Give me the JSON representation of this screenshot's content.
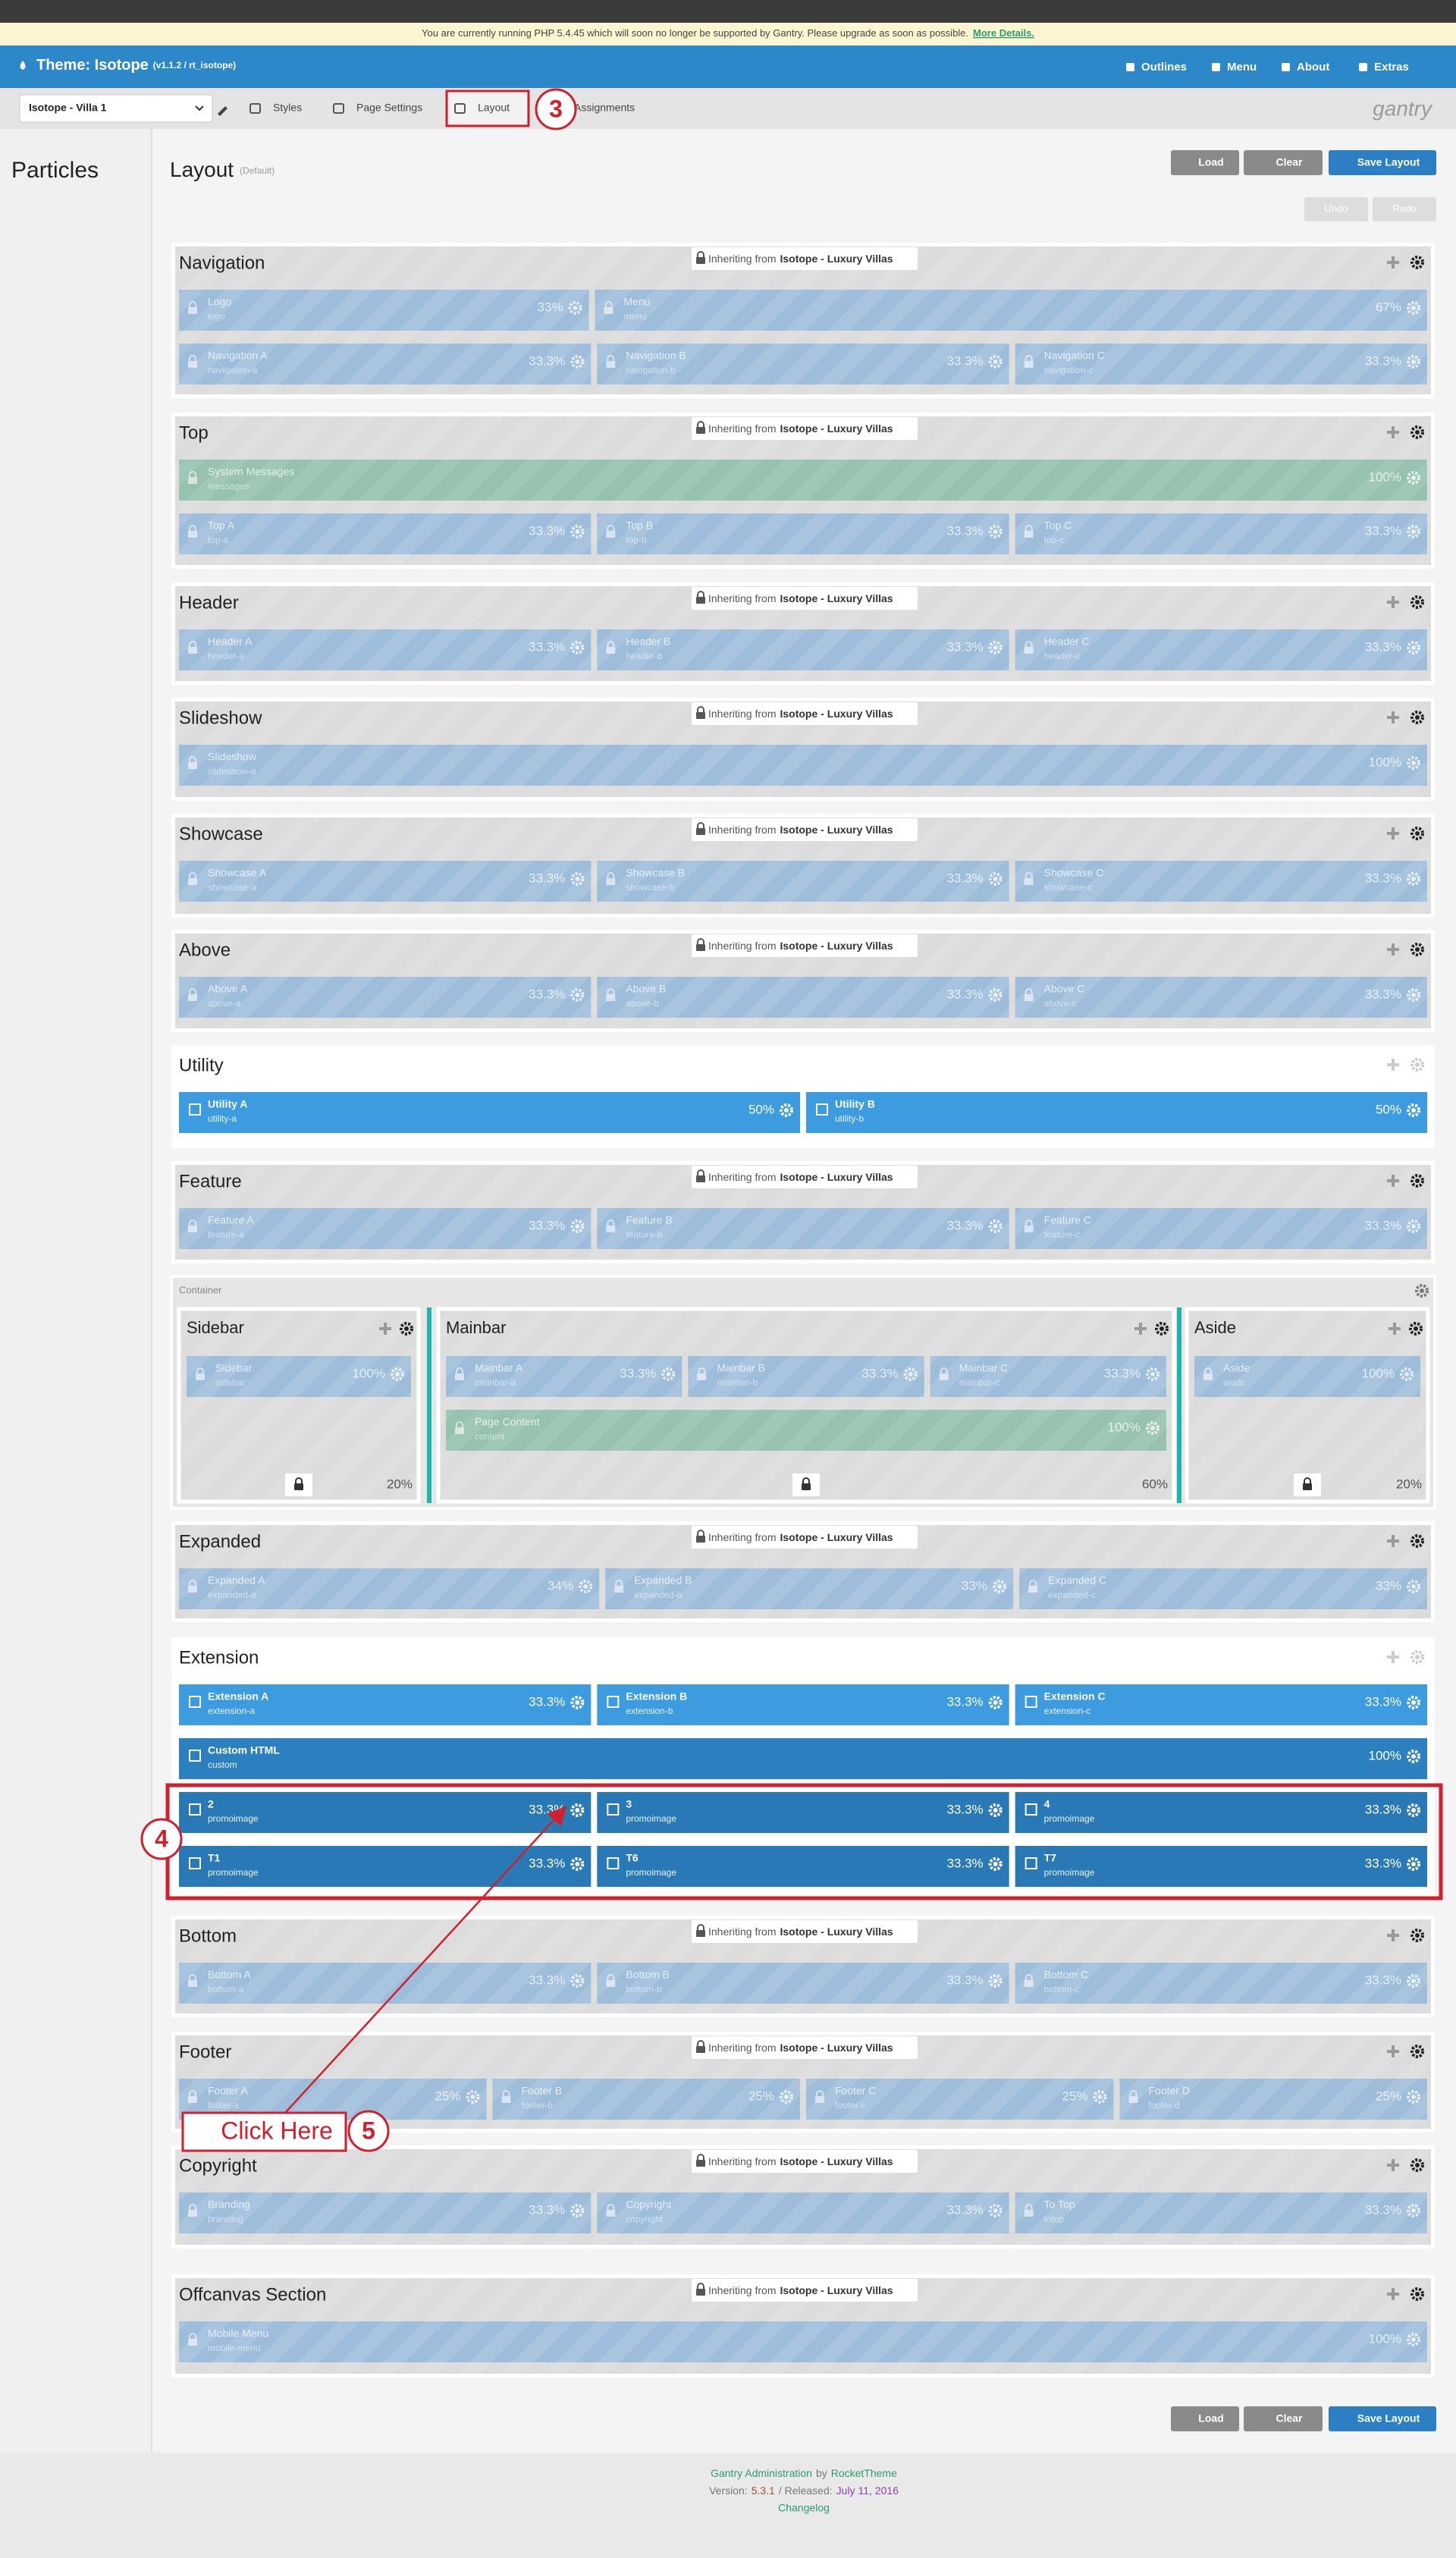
{
  "notice": {
    "text": "You are currently running PHP 5.4.45 which will soon no longer be supported by Gantry. Please upgrade as soon as possible.",
    "link": "More Details."
  },
  "topbar": {
    "title": "Theme: Isotope",
    "version": "(v1.1.2 / rt_isotope)",
    "nav": [
      "Outlines",
      "Menu",
      "About",
      "Extras"
    ]
  },
  "toolbar": {
    "outline": "Isotope - Villa 1",
    "tabs": [
      "Styles",
      "Page Settings",
      "Layout",
      "Assignments"
    ],
    "logo": "gantry"
  },
  "sidebar": {
    "title": "Particles"
  },
  "layout": {
    "title": "Layout",
    "subtitle": "(Default)",
    "buttons": [
      "Load",
      "Clear",
      "Save Layout"
    ],
    "undo": "Undo",
    "redo": "Redo",
    "inherit_text": "Inheriting from",
    "inherit_source": "Isotope - Luxury Villas"
  },
  "sections": [
    {
      "name": "Navigation",
      "inherited": true,
      "rows": [
        [
          {
            "title": "Logo",
            "id": "logo",
            "size": "33%"
          },
          {
            "title": "Menu",
            "id": "menu",
            "size": "67%"
          }
        ],
        [
          {
            "title": "Navigation A",
            "id": "navigation-a",
            "size": "33.3%"
          },
          {
            "title": "Navigation B",
            "id": "navigation-b",
            "size": "33.3%"
          },
          {
            "title": "Navigation C",
            "id": "navigation-c",
            "size": "33.3%"
          }
        ]
      ]
    },
    {
      "name": "Top",
      "inherited": true,
      "rows": [
        [
          {
            "title": "System Messages",
            "id": "messages",
            "size": "100%",
            "color": "#84bba4"
          }
        ],
        [
          {
            "title": "Top A",
            "id": "top-a",
            "size": "33.3%"
          },
          {
            "title": "Top B",
            "id": "top-b",
            "size": "33.3%"
          },
          {
            "title": "Top C",
            "id": "top-c",
            "size": "33.3%"
          }
        ]
      ]
    },
    {
      "name": "Header",
      "inherited": true,
      "rows": [
        [
          {
            "title": "Header A",
            "id": "header-a",
            "size": "33.3%"
          },
          {
            "title": "Header B",
            "id": "header-b",
            "size": "33.3%"
          },
          {
            "title": "Header C",
            "id": "header-c",
            "size": "33.3%"
          }
        ]
      ]
    },
    {
      "name": "Slideshow",
      "inherited": true,
      "rows": [
        [
          {
            "title": "Slideshow",
            "id": "slideshow-a",
            "size": "100%"
          }
        ]
      ]
    },
    {
      "name": "Showcase",
      "inherited": true,
      "rows": [
        [
          {
            "title": "Showcase A",
            "id": "showcase-a",
            "size": "33.3%"
          },
          {
            "title": "Showcase B",
            "id": "showcase-b",
            "size": "33.3%"
          },
          {
            "title": "Showcase C",
            "id": "showcase-c",
            "size": "33.3%"
          }
        ]
      ]
    },
    {
      "name": "Above",
      "inherited": true,
      "rows": [
        [
          {
            "title": "Above A",
            "id": "above-a",
            "size": "33.3%"
          },
          {
            "title": "Above B",
            "id": "above-b",
            "size": "33.3%"
          },
          {
            "title": "Above C",
            "id": "above-c",
            "size": "33.3%"
          }
        ]
      ]
    },
    {
      "name": "Utility",
      "inherited": false,
      "rows": [
        [
          {
            "title": "Utility A",
            "id": "utility-a",
            "size": "50%"
          },
          {
            "title": "Utility B",
            "id": "utility-b",
            "size": "50%"
          }
        ]
      ]
    },
    {
      "name": "Feature",
      "inherited": true,
      "rows": [
        [
          {
            "title": "Feature A",
            "id": "feature-a",
            "size": "33.3%"
          },
          {
            "title": "Feature B",
            "id": "feature-b",
            "size": "33.3%"
          },
          {
            "title": "Feature C",
            "id": "feature-c",
            "size": "33.3%"
          }
        ]
      ]
    },
    {
      "name": "Expanded",
      "inherited": true,
      "rows": [
        [
          {
            "title": "Expanded A",
            "id": "expanded-a",
            "size": "34%"
          },
          {
            "title": "Expanded B",
            "id": "expanded-b",
            "size": "33%"
          },
          {
            "title": "Expanded C",
            "id": "expanded-c",
            "size": "33%"
          }
        ]
      ]
    },
    {
      "name": "Extension",
      "inherited": false,
      "rows": [
        [
          {
            "title": "Extension A",
            "id": "extension-a",
            "size": "33.3%"
          },
          {
            "title": "Extension B",
            "id": "extension-b",
            "size": "33.3%"
          },
          {
            "title": "Extension C",
            "id": "extension-c",
            "size": "33.3%"
          }
        ],
        [
          {
            "title": "Custom HTML",
            "id": "custom",
            "size": "100%",
            "color": "#2c80bf"
          }
        ],
        [
          {
            "title": "2",
            "id": "promoimage",
            "size": "33.3%",
            "color": "#2a79b7"
          },
          {
            "title": "3",
            "id": "promoimage",
            "size": "33.3%",
            "color": "#2a79b7"
          },
          {
            "title": "4",
            "id": "promoimage",
            "size": "33.3%",
            "color": "#2a79b7"
          }
        ],
        [
          {
            "title": "T1",
            "id": "promoimage",
            "size": "33.3%",
            "color": "#2a79b7"
          },
          {
            "title": "T6",
            "id": "promoimage",
            "size": "33.3%",
            "color": "#2a79b7"
          },
          {
            "title": "T7",
            "id": "promoimage",
            "size": "33.3%",
            "color": "#2a79b7"
          }
        ]
      ]
    },
    {
      "name": "Bottom",
      "inherited": true,
      "rows": [
        [
          {
            "title": "Bottom A",
            "id": "bottom-a",
            "size": "33.3%"
          },
          {
            "title": "Bottom B",
            "id": "bottom-b",
            "size": "33.3%"
          },
          {
            "title": "Bottom C",
            "id": "bottom-c",
            "size": "33.3%"
          }
        ]
      ]
    },
    {
      "name": "Footer",
      "inherited": true,
      "rows": [
        [
          {
            "title": "Footer A",
            "id": "footer-a",
            "size": "25%"
          },
          {
            "title": "Footer B",
            "id": "footer-b",
            "size": "25%"
          },
          {
            "title": "Footer C",
            "id": "footer-c",
            "size": "25%"
          },
          {
            "title": "Footer D",
            "id": "footer-d",
            "size": "25%"
          }
        ]
      ]
    },
    {
      "name": "Copyright",
      "inherited": true,
      "rows": [
        [
          {
            "title": "Branding",
            "id": "branding",
            "size": "33.3%"
          },
          {
            "title": "Copyright",
            "id": "copyright",
            "size": "33.3%"
          },
          {
            "title": "To Top",
            "id": "totop",
            "size": "33.3%"
          }
        ]
      ]
    },
    {
      "name": "Offcanvas Section",
      "inherited": true,
      "rows": [
        [
          {
            "title": "Mobile Menu",
            "id": "mobile-menu",
            "size": "100%"
          }
        ]
      ]
    }
  ],
  "container": {
    "label": "Container",
    "columns": [
      {
        "name": "Sidebar",
        "width": "20%",
        "rows": [
          [
            {
              "title": "Sidebar",
              "id": "sidebar",
              "size": "100%"
            }
          ]
        ]
      },
      {
        "name": "Mainbar",
        "width": "60%",
        "rows": [
          [
            {
              "title": "Mainbar A",
              "id": "mainbar-a",
              "size": "33.3%"
            },
            {
              "title": "Mainbar B",
              "id": "mainbar-b",
              "size": "33.3%"
            },
            {
              "title": "Mainbar C",
              "id": "mainbar-c",
              "size": "33.3%"
            }
          ],
          [
            {
              "title": "Page Content",
              "id": "content",
              "size": "100%",
              "color": "#84bba4"
            }
          ]
        ]
      },
      {
        "name": "Aside",
        "width": "20%",
        "rows": [
          [
            {
              "title": "Aside",
              "id": "aside",
              "size": "100%"
            }
          ]
        ]
      }
    ]
  },
  "footer": {
    "admin": "Gantry Administration",
    "by": "by",
    "company": "RocketTheme",
    "version_label": "Version:",
    "version": "5.3.1",
    "released_label": "/ Released:",
    "date": "July 11, 2016",
    "changelog": "Changelog"
  },
  "annotations": {
    "callouts": [
      "3",
      "4",
      "5"
    ],
    "click_label": "Click Here"
  }
}
